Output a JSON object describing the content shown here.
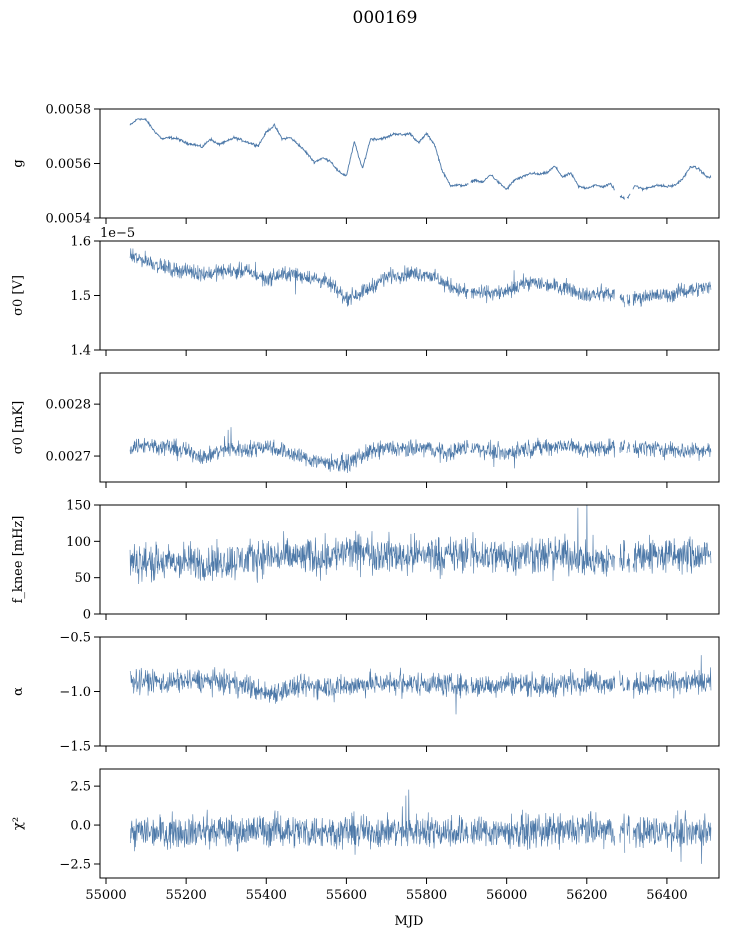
{
  "figure": {
    "title": "000169",
    "xlabel": "MJD",
    "line_color": "#4c78a8"
  },
  "chart_data": [
    {
      "type": "line",
      "ylabel": "g",
      "ylim": [
        0.0054,
        0.0058
      ],
      "yticks": [
        "0.0054",
        "0.0056",
        "0.0058"
      ],
      "ytick_values": [
        0.0054,
        0.0056,
        0.0058
      ],
      "sci_offset": "",
      "noise": 4e-06,
      "x": [
        55060,
        55080,
        55100,
        55120,
        55140,
        55160,
        55180,
        55200,
        55220,
        55240,
        55260,
        55280,
        55300,
        55320,
        55340,
        55360,
        55380,
        55400,
        55420,
        55440,
        55460,
        55480,
        55500,
        55520,
        55540,
        55560,
        55580,
        55600,
        55620,
        55640,
        55660,
        55680,
        55700,
        55720,
        55740,
        55760,
        55780,
        55800,
        55820,
        55840,
        55860,
        55880,
        55900,
        55920,
        55940,
        55960,
        55980,
        56000,
        56020,
        56040,
        56060,
        56080,
        56100,
        56120,
        56140,
        56160,
        56180,
        56200,
        56220,
        56240,
        56260,
        56280,
        56300,
        56320,
        56340,
        56360,
        56380,
        56400,
        56420,
        56440,
        56460,
        56480,
        56500
      ],
      "y": [
        0.00574,
        0.005765,
        0.00576,
        0.00572,
        0.00569,
        0.005695,
        0.00569,
        0.005675,
        0.00567,
        0.00566,
        0.00569,
        0.00567,
        0.00568,
        0.005695,
        0.005685,
        0.005675,
        0.005665,
        0.005715,
        0.00574,
        0.00569,
        0.005695,
        0.00567,
        0.00564,
        0.005605,
        0.00562,
        0.00561,
        0.00557,
        0.005555,
        0.00568,
        0.00558,
        0.00569,
        0.00569,
        0.005695,
        0.00571,
        0.005705,
        0.00571,
        0.005675,
        0.00571,
        0.00567,
        0.00557,
        0.00552,
        0.00552,
        0.00552,
        0.00554,
        0.00553,
        0.00556,
        0.00553,
        0.005505,
        0.00554,
        0.00555,
        0.005565,
        0.00556,
        0.005565,
        0.00559,
        0.00555,
        0.005565,
        0.005515,
        0.00551,
        0.00552,
        0.005515,
        0.005525,
        0.00548,
        0.00547,
        0.00552,
        0.005505,
        0.005515,
        0.00552,
        0.005515,
        0.00552,
        0.005545,
        0.00559,
        0.00558,
        0.00555
      ]
    },
    {
      "type": "line",
      "ylabel": "σ0 [V]",
      "ylim": [
        1.4,
        1.6
      ],
      "yticks": [
        "1.4",
        "1.5",
        "1.6"
      ],
      "ytick_values": [
        1.4,
        1.5,
        1.6
      ],
      "sci_offset": "1e−5",
      "noise": 0.012,
      "x": [
        55060,
        55100,
        55150,
        55200,
        55250,
        55300,
        55350,
        55400,
        55450,
        55500,
        55550,
        55600,
        55650,
        55700,
        55750,
        55800,
        55850,
        55900,
        55950,
        56000,
        56050,
        56100,
        56150,
        56200,
        56250,
        56300,
        56350,
        56400,
        56450,
        56500
      ],
      "y": [
        1.57,
        1.565,
        1.55,
        1.545,
        1.54,
        1.545,
        1.545,
        1.53,
        1.54,
        1.535,
        1.525,
        1.495,
        1.51,
        1.535,
        1.54,
        1.54,
        1.52,
        1.505,
        1.505,
        1.505,
        1.525,
        1.52,
        1.515,
        1.5,
        1.505,
        1.49,
        1.5,
        1.5,
        1.51,
        1.515
      ]
    },
    {
      "type": "line",
      "ylabel": "σ0 [mK]",
      "ylim": [
        0.00265,
        0.00286
      ],
      "yticks": [
        "0.0027",
        "0.0028"
      ],
      "ytick_values": [
        0.0027,
        0.0028
      ],
      "sci_offset": "",
      "noise": 1.4e-05,
      "x": [
        55060,
        55100,
        55150,
        55200,
        55250,
        55300,
        55350,
        55400,
        55450,
        55500,
        55550,
        55600,
        55650,
        55700,
        55750,
        55800,
        55850,
        55900,
        55950,
        56000,
        56050,
        56100,
        56150,
        56200,
        56250,
        56300,
        56350,
        56400,
        56450,
        56500
      ],
      "y": [
        0.002718,
        0.002722,
        0.002718,
        0.00271,
        0.002698,
        0.002715,
        0.002712,
        0.00272,
        0.002708,
        0.002695,
        0.002688,
        0.002685,
        0.002705,
        0.002715,
        0.002712,
        0.002716,
        0.002705,
        0.002718,
        0.002712,
        0.002705,
        0.002715,
        0.002718,
        0.00272,
        0.002712,
        0.002718,
        0.002715,
        0.002716,
        0.002712,
        0.00271,
        0.002712
      ]
    },
    {
      "type": "line",
      "ylabel": "f_knee [mHz]",
      "ylim": [
        0,
        150
      ],
      "yticks": [
        "0",
        "50",
        "100",
        "150"
      ],
      "ytick_values": [
        0,
        50,
        100,
        150
      ],
      "sci_offset": "",
      "noise": 22,
      "x": [
        55060,
        55100,
        55150,
        55200,
        55250,
        55300,
        55350,
        55400,
        55450,
        55500,
        55550,
        55600,
        55650,
        55700,
        55750,
        55800,
        55850,
        55900,
        55950,
        56000,
        56050,
        56100,
        56150,
        56200,
        56250,
        56300,
        56350,
        56400,
        56450,
        56500
      ],
      "y": [
        70,
        72,
        70,
        72,
        70,
        72,
        75,
        80,
        78,
        78,
        80,
        85,
        85,
        82,
        80,
        83,
        80,
        82,
        80,
        80,
        82,
        80,
        82,
        75,
        72,
        78,
        82,
        80,
        80,
        80
      ]
    },
    {
      "type": "line",
      "ylabel": "α",
      "ylim": [
        -1.5,
        -0.5
      ],
      "yticks": [
        "−1.5",
        "−1.0",
        "−0.5"
      ],
      "ytick_values": [
        -1.5,
        -1.0,
        -0.5
      ],
      "sci_offset": "",
      "noise": 0.09,
      "x": [
        55060,
        55100,
        55150,
        55200,
        55250,
        55300,
        55350,
        55400,
        55450,
        55500,
        55550,
        55600,
        55650,
        55700,
        55750,
        55800,
        55850,
        55900,
        55950,
        56000,
        56050,
        56100,
        56150,
        56200,
        56250,
        56300,
        56350,
        56400,
        56450,
        56500
      ],
      "y": [
        -0.9,
        -0.9,
        -0.92,
        -0.9,
        -0.9,
        -0.92,
        -0.95,
        -1.02,
        -0.98,
        -0.95,
        -0.95,
        -0.95,
        -0.93,
        -0.92,
        -0.93,
        -0.92,
        -0.94,
        -0.95,
        -0.95,
        -0.92,
        -0.93,
        -0.95,
        -0.92,
        -0.9,
        -0.92,
        -0.95,
        -0.93,
        -0.92,
        -0.92,
        -0.92
      ]
    },
    {
      "type": "line",
      "ylabel": "χ²",
      "ylim": [
        -3.4,
        3.6
      ],
      "yticks": [
        "−2.5",
        "0.0",
        "2.5"
      ],
      "ytick_values": [
        -2.5,
        0.0,
        2.5
      ],
      "sci_offset": "",
      "noise": 0.9,
      "x": [
        55060,
        55100,
        55150,
        55200,
        55250,
        55300,
        55350,
        55400,
        55450,
        55500,
        55550,
        55600,
        55650,
        55700,
        55750,
        55800,
        55850,
        55900,
        55950,
        56000,
        56050,
        56100,
        56150,
        56200,
        56250,
        56300,
        56350,
        56400,
        56450,
        56500
      ],
      "y": [
        -0.4,
        -0.4,
        -0.4,
        -0.4,
        -0.4,
        -0.4,
        -0.4,
        -0.3,
        -0.3,
        -0.4,
        -0.4,
        -0.4,
        -0.4,
        -0.4,
        -0.4,
        -0.3,
        -0.4,
        -0.4,
        -0.4,
        -0.4,
        -0.4,
        -0.4,
        -0.4,
        -0.3,
        -0.4,
        -0.4,
        -0.4,
        -0.4,
        -0.4,
        -0.4
      ]
    }
  ],
  "xaxis": {
    "xlim": [
      54985,
      56530
    ],
    "x_start": 55060,
    "x_end": 56510,
    "xticks": [
      "55000",
      "55200",
      "55400",
      "55600",
      "55800",
      "56000",
      "56200",
      "56400"
    ],
    "xtick_values": [
      55000,
      55200,
      55400,
      55600,
      55800,
      56000,
      56200,
      56400
    ],
    "gaps": [
      [
        55905,
        55910
      ],
      [
        56270,
        56282
      ],
      [
        56295,
        56300
      ],
      [
        56308,
        56315
      ]
    ]
  }
}
